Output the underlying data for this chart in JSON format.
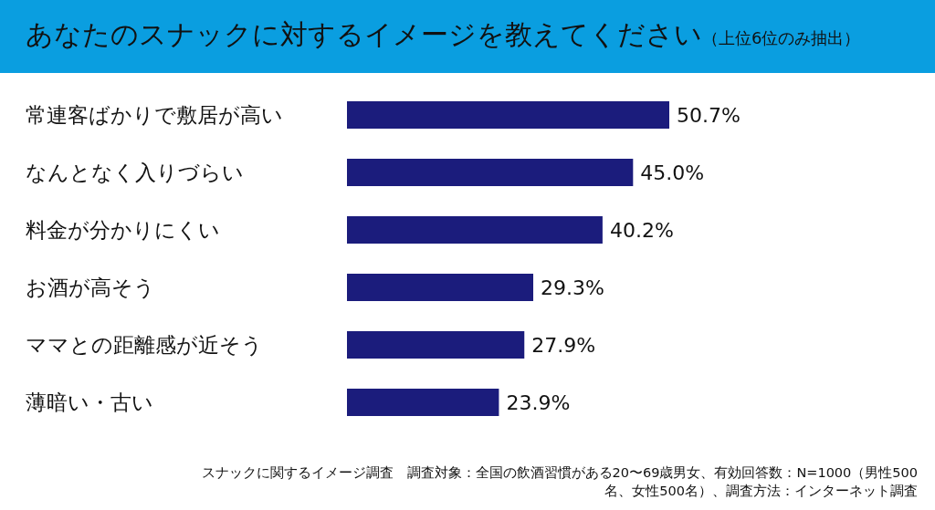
{
  "chart_data": {
    "type": "bar",
    "orientation": "horizontal",
    "title": "あなたのスナックに対するイメージを教えてください",
    "subtitle": "（上位6位のみ抽出）",
    "categories": [
      "常連客ばかりで敷居が高い",
      "なんとなく入りづらい",
      "料金が分かりにくい",
      "お酒が高そう",
      "ママとの距離感が近そう",
      "薄暗い・古い"
    ],
    "values": [
      50.7,
      45.0,
      40.2,
      29.3,
      27.9,
      23.9
    ],
    "value_labels": [
      "50.7%",
      "45.0%",
      "40.2%",
      "29.3%",
      "27.9%",
      "23.9%"
    ],
    "color": "#1b1c7c",
    "annotations": [
      "スナックに関するイメージ調査　調査対象：全国の飲酒習慣がある20〜69歳男女、有効回答数：N=1000（男性500名、女性500名）、調査方法：インターネット調査"
    ]
  }
}
